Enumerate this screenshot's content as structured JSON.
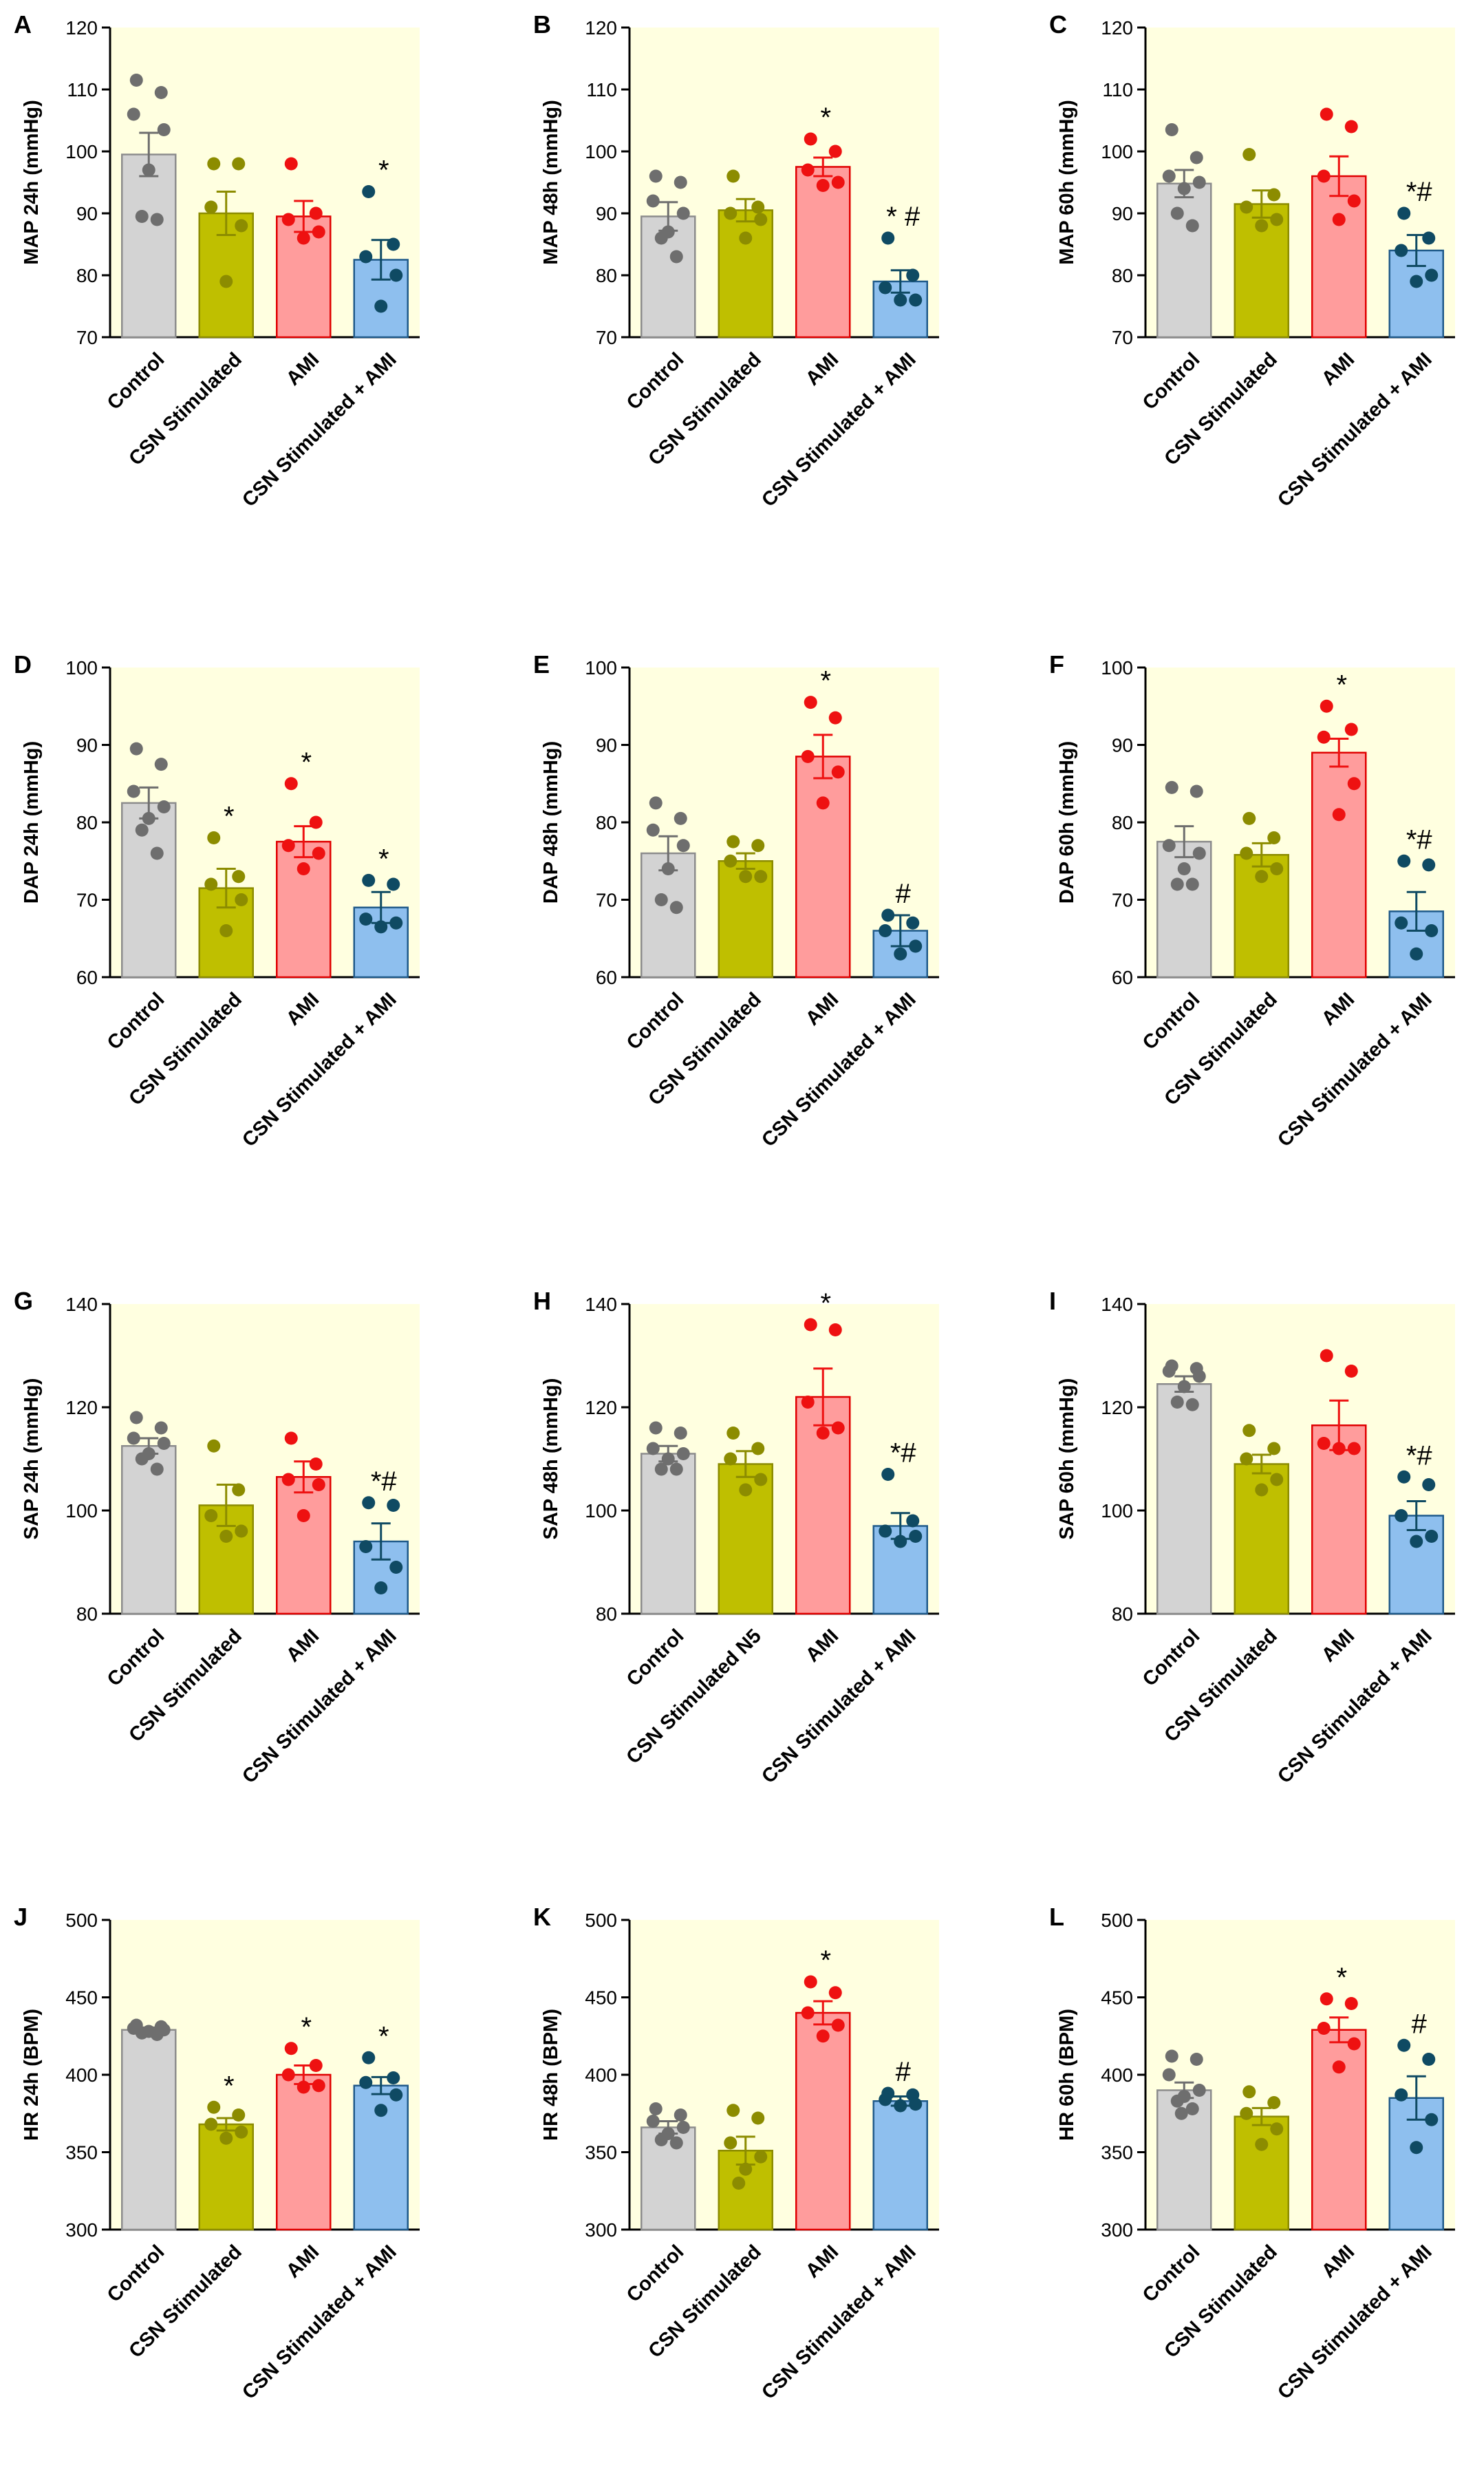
{
  "colors": {
    "plot_bg": "#ffffe0",
    "axis": "#000000",
    "groups": [
      {
        "fill": "#d3d3d3",
        "edge": "#8c8c8c",
        "dot": "#6e6e6e"
      },
      {
        "fill": "#bfbf00",
        "edge": "#8c8c00",
        "dot": "#8c8c00"
      },
      {
        "fill": "#ff9c9c",
        "edge": "#e00000",
        "dot": "#ee1111"
      },
      {
        "fill": "#8ebfee",
        "edge": "#1f5a8a",
        "dot": "#0f4a63"
      }
    ]
  },
  "chart_data": [
    {
      "panel": "A",
      "type": "bar",
      "ylabel": "MAP 24h (mmHg)",
      "ylim": [
        70,
        120
      ],
      "yticks": [
        70,
        80,
        90,
        100,
        110,
        120
      ],
      "categories": [
        "Control",
        "CSN Stimulated",
        "AMI",
        "CSN Stimulated + AMI"
      ],
      "values": [
        99.5,
        90,
        89.5,
        82.5
      ],
      "sem": [
        3.5,
        3.5,
        2.5,
        3.2
      ],
      "points": [
        [
          111.5,
          109.5,
          106,
          103.5,
          97,
          89.5,
          89
        ],
        [
          98,
          98,
          91,
          88,
          79
        ],
        [
          98,
          90,
          89,
          87,
          86
        ],
        [
          93.5,
          85,
          83,
          80,
          75
        ]
      ],
      "annotations": [
        "",
        "",
        "",
        "*"
      ]
    },
    {
      "panel": "B",
      "type": "bar",
      "ylabel": "MAP 48h (mmHg)",
      "ylim": [
        70,
        120
      ],
      "yticks": [
        70,
        80,
        90,
        100,
        110,
        120
      ],
      "categories": [
        "Control",
        "CSN Stimulated",
        "AMI",
        "CSN Stimulated + AMI"
      ],
      "values": [
        89.5,
        90.5,
        97.5,
        79
      ],
      "sem": [
        2.3,
        1.8,
        1.5,
        1.8
      ],
      "points": [
        [
          96,
          95,
          92,
          90,
          87,
          86,
          83
        ],
        [
          96,
          91,
          90,
          89,
          86
        ],
        [
          102,
          100,
          97,
          95,
          94.5
        ],
        [
          86,
          80,
          78,
          76,
          76
        ]
      ],
      "annotations": [
        "",
        "",
        "*",
        "* #"
      ]
    },
    {
      "panel": "C",
      "type": "bar",
      "ylabel": "MAP 60h (mmHg)",
      "ylim": [
        70,
        120
      ],
      "yticks": [
        70,
        80,
        90,
        100,
        110,
        120
      ],
      "categories": [
        "Control",
        "CSN Stimulated",
        "AMI",
        "CSN Stimulated + AMI"
      ],
      "values": [
        94.8,
        91.5,
        96,
        84
      ],
      "sem": [
        2.2,
        2.2,
        3.2,
        2.5
      ],
      "points": [
        [
          103.5,
          99,
          96,
          95,
          94,
          90,
          88
        ],
        [
          99.5,
          93,
          91,
          89,
          88
        ],
        [
          106,
          104,
          96,
          92,
          89
        ],
        [
          90,
          86,
          84,
          80,
          79
        ]
      ],
      "annotations": [
        "",
        "",
        "",
        "*#"
      ]
    },
    {
      "panel": "D",
      "type": "bar",
      "ylabel": "DAP 24h (mmHg)",
      "ylim": [
        60,
        100
      ],
      "yticks": [
        60,
        70,
        80,
        90,
        100
      ],
      "categories": [
        "Control",
        "CSN Stimulated",
        "AMI",
        "CSN Stimulated + AMI"
      ],
      "values": [
        82.5,
        71.5,
        77.5,
        69
      ],
      "sem": [
        2.0,
        2.5,
        2.0,
        2.0
      ],
      "points": [
        [
          89.5,
          87.5,
          84,
          82,
          80.5,
          79,
          76
        ],
        [
          78,
          73,
          72,
          70,
          66
        ],
        [
          85,
          80,
          77,
          76,
          74
        ],
        [
          72.5,
          72,
          67.5,
          67,
          66.5
        ]
      ],
      "annotations": [
        "",
        "*",
        "*",
        "*"
      ]
    },
    {
      "panel": "E",
      "type": "bar",
      "ylabel": "DAP 48h (mmHg)",
      "ylim": [
        60,
        100
      ],
      "yticks": [
        60,
        70,
        80,
        90,
        100
      ],
      "categories": [
        "Control",
        "CSN Stimulated",
        "AMI",
        "CSN Stimulated + AMI"
      ],
      "values": [
        76,
        75,
        88.5,
        66
      ],
      "sem": [
        2.2,
        1.0,
        2.8,
        2.0
      ],
      "points": [
        [
          82.5,
          80.5,
          79,
          77,
          74,
          70,
          69
        ],
        [
          77.5,
          77,
          75,
          73,
          73
        ],
        [
          95.5,
          93.5,
          88.5,
          86.5,
          82.5
        ],
        [
          68,
          67,
          66,
          64,
          63
        ]
      ],
      "annotations": [
        "",
        "",
        "*",
        "#"
      ]
    },
    {
      "panel": "F",
      "type": "bar",
      "ylabel": "DAP 60h (mmHg)",
      "ylim": [
        60,
        100
      ],
      "yticks": [
        60,
        70,
        80,
        90,
        100
      ],
      "categories": [
        "Control",
        "CSN Stimulated",
        "AMI",
        "CSN Stimulated + AMI"
      ],
      "values": [
        77.5,
        75.8,
        89,
        68.5
      ],
      "sem": [
        2.0,
        1.5,
        1.8,
        2.5
      ],
      "points": [
        [
          84.5,
          84,
          77,
          76,
          74,
          72,
          72
        ],
        [
          80.5,
          78,
          76,
          74,
          73
        ],
        [
          95,
          92,
          91,
          85,
          81
        ],
        [
          75,
          74.5,
          67,
          66,
          63
        ]
      ],
      "annotations": [
        "",
        "",
        "*",
        "*#"
      ]
    },
    {
      "panel": "G",
      "type": "bar",
      "ylabel": "SAP 24h (mmHg)",
      "ylim": [
        80,
        140
      ],
      "yticks": [
        80,
        100,
        120,
        140
      ],
      "categories": [
        "Control",
        "CSN Stimulated",
        "AMI",
        "CSN Stimulated + AMI"
      ],
      "values": [
        112.5,
        101,
        106.5,
        94
      ],
      "sem": [
        1.5,
        4.0,
        3.0,
        3.5
      ],
      "points": [
        [
          118,
          116,
          114,
          113,
          111,
          110,
          108
        ],
        [
          112.5,
          104,
          99,
          96,
          95
        ],
        [
          114,
          109,
          106,
          105,
          99
        ],
        [
          101.5,
          101,
          93,
          89,
          85
        ]
      ],
      "annotations": [
        "",
        "",
        "",
        "*#"
      ]
    },
    {
      "panel": "H",
      "type": "bar",
      "ylabel": "SAP 48h (mmHg)",
      "ylim": [
        80,
        140
      ],
      "yticks": [
        80,
        100,
        120,
        140
      ],
      "categories": [
        "Control",
        "CSN Stimulated N5",
        "AMI",
        "CSN Stimulated + AMI"
      ],
      "values": [
        111,
        109,
        122,
        97
      ],
      "sem": [
        1.5,
        2.5,
        5.5,
        2.5
      ],
      "points": [
        [
          116,
          115,
          112,
          111,
          110,
          108,
          108
        ],
        [
          115,
          112,
          110,
          106,
          104
        ],
        [
          136,
          135,
          121,
          116,
          115
        ],
        [
          107,
          98,
          96,
          95,
          94
        ]
      ],
      "annotations": [
        "",
        "",
        "*",
        "*#"
      ]
    },
    {
      "panel": "I",
      "type": "bar",
      "ylabel": "SAP 60h (mmHg)",
      "ylim": [
        80,
        140
      ],
      "yticks": [
        80,
        100,
        120,
        140
      ],
      "categories": [
        "Control",
        "CSN Stimulated",
        "AMI",
        "CSN Stimulated + AMI"
      ],
      "values": [
        124.5,
        109,
        116.5,
        99
      ],
      "sem": [
        1.5,
        1.8,
        4.8,
        2.8
      ],
      "points": [
        [
          128,
          127.5,
          127,
          126,
          124,
          121,
          120.5
        ],
        [
          115.5,
          112,
          110,
          106,
          104
        ],
        [
          130,
          127,
          113,
          112,
          112
        ],
        [
          106.5,
          105,
          99,
          95,
          94
        ]
      ],
      "annotations": [
        "",
        "",
        "",
        "*#"
      ]
    },
    {
      "panel": "J",
      "type": "bar",
      "ylabel": "HR 24h (BPM)",
      "ylim": [
        300,
        500
      ],
      "yticks": [
        300,
        350,
        400,
        450,
        500
      ],
      "categories": [
        "Control",
        "CSN Stimulated",
        "AMI",
        "CSN Stimulated + AMI"
      ],
      "values": [
        429,
        368,
        400,
        393
      ],
      "sem": [
        1.5,
        4.0,
        6.0,
        5.5
      ],
      "points": [
        [
          432,
          431,
          430,
          429,
          428,
          427,
          426
        ],
        [
          379,
          374,
          368,
          363,
          359
        ],
        [
          417,
          406,
          400,
          393,
          392
        ],
        [
          411,
          398,
          395,
          387,
          377
        ]
      ],
      "annotations": [
        "",
        "*",
        "*",
        "*"
      ]
    },
    {
      "panel": "K",
      "type": "bar",
      "ylabel": "HR 48h (BPM)",
      "ylim": [
        300,
        500
      ],
      "yticks": [
        300,
        350,
        400,
        450,
        500
      ],
      "categories": [
        "Control",
        "CSN Stimulated",
        "AMI",
        "CSN Stimulated + AMI"
      ],
      "values": [
        366,
        351,
        440,
        383
      ],
      "sem": [
        4.0,
        9.0,
        7.5,
        3.0
      ],
      "points": [
        [
          378,
          374,
          370,
          366,
          362,
          358,
          356
        ],
        [
          377,
          372,
          356,
          347,
          339,
          330
        ],
        [
          460,
          453,
          440,
          432,
          425
        ],
        [
          388,
          387,
          384,
          381,
          380
        ]
      ],
      "annotations": [
        "",
        "",
        "*",
        "#"
      ]
    },
    {
      "panel": "L",
      "type": "bar",
      "ylabel": "HR 60h (BPM)",
      "ylim": [
        300,
        500
      ],
      "yticks": [
        300,
        350,
        400,
        450,
        500
      ],
      "categories": [
        "Control",
        "CSN Stimulated",
        "AMI",
        "CSN Stimulated + AMI"
      ],
      "values": [
        390,
        373,
        429,
        385
      ],
      "sem": [
        5.0,
        5.5,
        8.0,
        14.0
      ],
      "points": [
        [
          412,
          410,
          400,
          390,
          386,
          383,
          378,
          375
        ],
        [
          389,
          382,
          375,
          365,
          355
        ],
        [
          449,
          446,
          430,
          420,
          405
        ],
        [
          419,
          410,
          387,
          371,
          353
        ]
      ],
      "annotations": [
        "",
        "",
        "*",
        "#"
      ]
    }
  ]
}
